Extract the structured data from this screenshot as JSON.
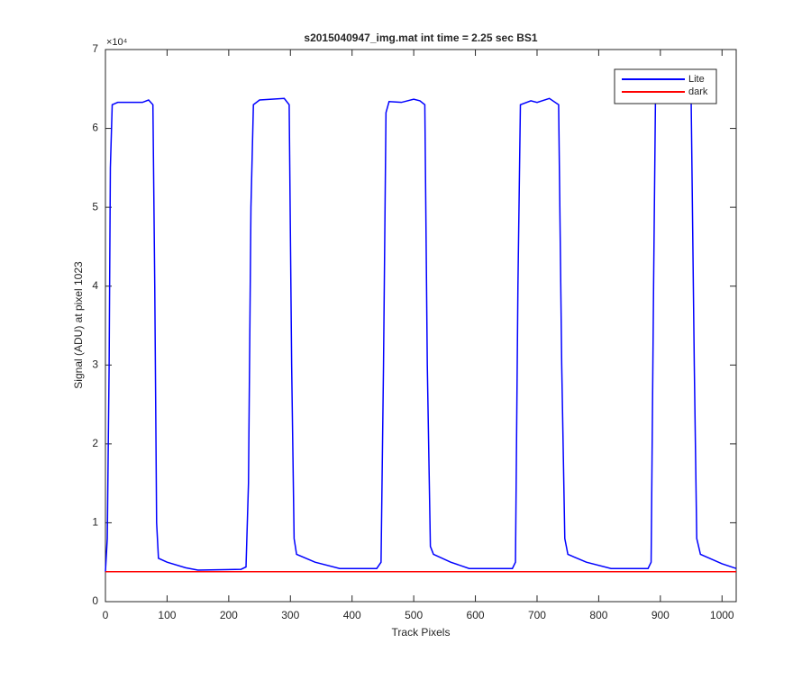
{
  "chart_data": {
    "type": "line",
    "title": "s2015040947_img.mat int time = 2.25 sec   BS1",
    "xlabel": "Track Pixels",
    "ylabel": "Signal (ADU) at pixel 1023",
    "y_multiplier": "×10⁴",
    "xlim": [
      0,
      1023
    ],
    "ylim": [
      0,
      70000
    ],
    "xticks": [
      0,
      100,
      200,
      300,
      400,
      500,
      600,
      700,
      800,
      900,
      1000
    ],
    "yticks": [
      {
        "value": 0,
        "label": "0"
      },
      {
        "value": 10000,
        "label": "1"
      },
      {
        "value": 20000,
        "label": "2"
      },
      {
        "value": 30000,
        "label": "3"
      },
      {
        "value": 40000,
        "label": "4"
      },
      {
        "value": 50000,
        "label": "5"
      },
      {
        "value": 60000,
        "label": "6"
      },
      {
        "value": 70000,
        "label": "7"
      }
    ],
    "legend": "upper right",
    "series": [
      {
        "name": "Lite",
        "color": "#0000ff",
        "x": [
          0,
          3,
          6,
          8,
          11,
          20,
          60,
          70,
          77,
          80,
          83,
          86,
          100,
          130,
          150,
          220,
          228,
          232,
          236,
          240,
          250,
          290,
          298,
          302,
          306,
          310,
          340,
          380,
          440,
          447,
          451,
          455,
          460,
          480,
          500,
          510,
          518,
          522,
          527,
          532,
          560,
          590,
          660,
          665,
          669,
          673,
          690,
          700,
          720,
          735,
          740,
          745,
          750,
          780,
          820,
          880,
          885,
          889,
          892,
          950,
          955,
          959,
          965,
          1000,
          1023
        ],
        "values": [
          3800,
          8000,
          30000,
          55000,
          63000,
          63300,
          63300,
          63600,
          63000,
          40000,
          10000,
          5500,
          5000,
          4300,
          4000,
          4100,
          4400,
          15000,
          50000,
          63000,
          63600,
          63800,
          63000,
          30000,
          8000,
          6000,
          5000,
          4200,
          4200,
          5000,
          30000,
          62000,
          63400,
          63300,
          63700,
          63500,
          63000,
          30000,
          7000,
          6000,
          5000,
          4200,
          4200,
          5000,
          40000,
          63000,
          63500,
          63300,
          63800,
          63000,
          30000,
          8000,
          6000,
          5000,
          4200,
          4200,
          5000,
          40000,
          63200,
          63200,
          30000,
          8000,
          6000,
          4800,
          4200
        ]
      },
      {
        "name": "dark",
        "color": "#ff0000",
        "x": [
          0,
          1023
        ],
        "values": [
          3800,
          3800
        ]
      }
    ]
  }
}
